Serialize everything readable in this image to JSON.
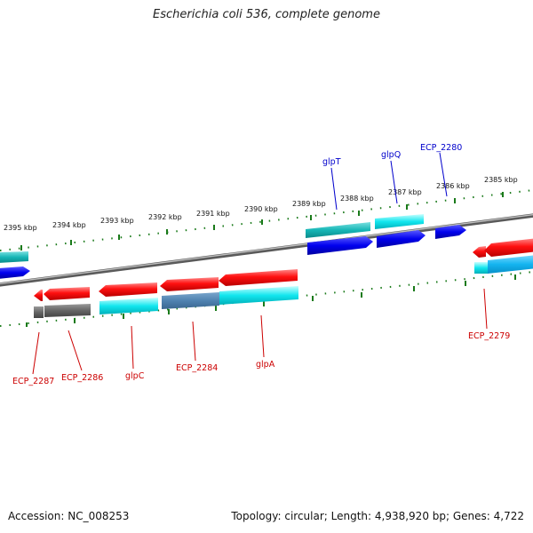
{
  "header": {
    "title": "Escherichia coli 536, complete genome"
  },
  "footer": {
    "accession": "Accession: NC_008253",
    "summary": "Topology: circular; Length: 4,938,920 bp; Genes: 4,722"
  },
  "colors": {
    "forward_gene_label": "#0000cc",
    "reverse_gene_label": "#cc0000",
    "tick": "#1a7a1a",
    "backbone": "#888888"
  },
  "scale_labels": [
    "2395 kbp",
    "2394 kbp",
    "2393 kbp",
    "2392 kbp",
    "2391 kbp",
    "2390 kbp",
    "2389 kbp",
    "2388 kbp",
    "2387 kbp",
    "2386 kbp",
    "2385 kbp"
  ],
  "forward_genes": [
    "glpT",
    "glpQ",
    "ECP_2280"
  ],
  "reverse_genes": [
    "ECP_2287",
    "ECP_2286",
    "glpC",
    "ECP_2284",
    "glpA",
    "ECP_2279"
  ]
}
